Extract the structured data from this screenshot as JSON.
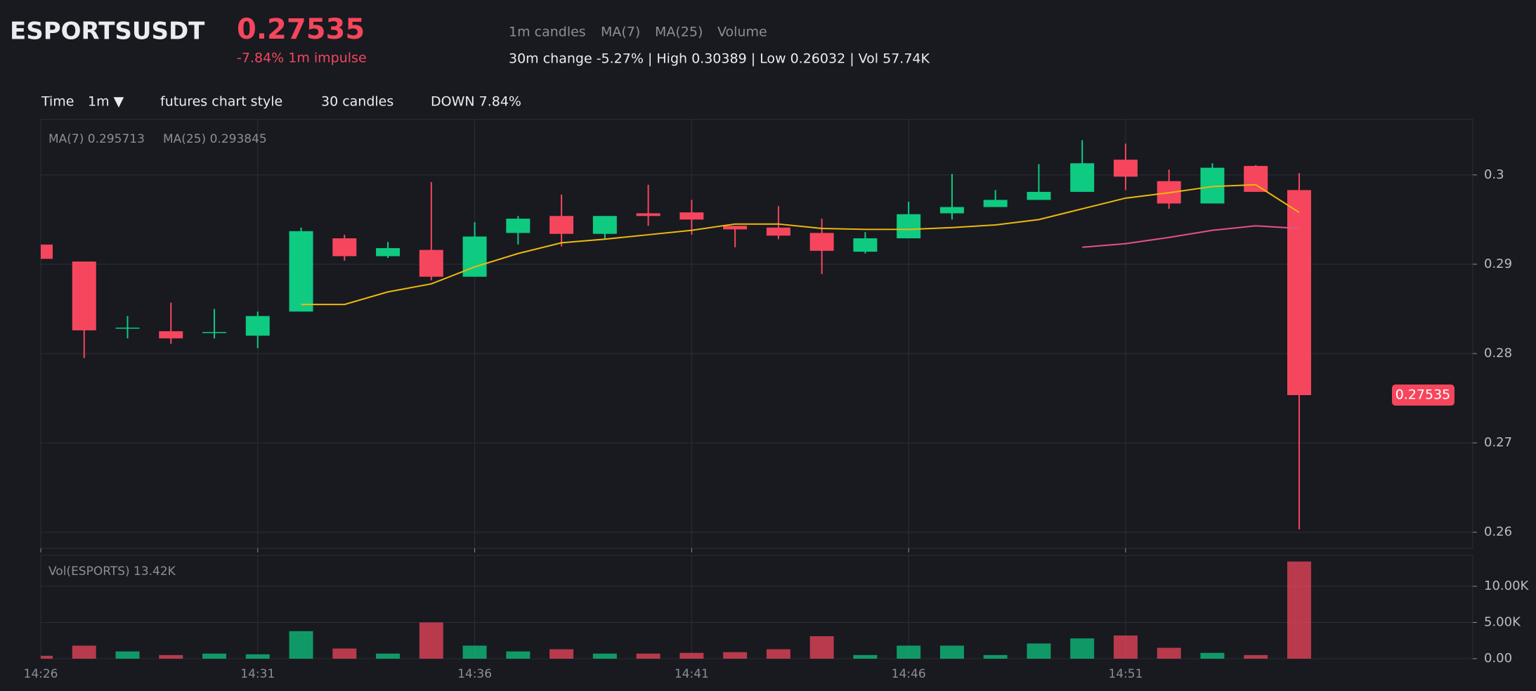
{
  "header": {
    "symbol": "ESPORTSUSDT",
    "price": "0.27535",
    "impulse": "-7.84% 1m impulse",
    "legend": [
      "1m candles",
      "MA(7)",
      "MA(25)",
      "Volume"
    ],
    "stats": "30m change -5.27% | High 0.30389 | Low 0.26032 | Vol 57.74K"
  },
  "toolbar": {
    "time_label": "Time",
    "interval": "1m ▼",
    "style": "futures chart style",
    "count": "30 candles",
    "direction": "DOWN 7.84%"
  },
  "chart_data": {
    "type": "candlestick",
    "x": [
      "14:26",
      "14:27",
      "14:28",
      "14:29",
      "14:30",
      "14:31",
      "14:32",
      "14:33",
      "14:34",
      "14:35",
      "14:36",
      "14:37",
      "14:38",
      "14:39",
      "14:40",
      "14:41",
      "14:42",
      "14:43",
      "14:44",
      "14:45",
      "14:46",
      "14:47",
      "14:48",
      "14:49",
      "14:50",
      "14:51",
      "14:52",
      "14:53",
      "14:54",
      "14:55"
    ],
    "xlim": [
      "14:26",
      "14:59"
    ],
    "xticks": [
      "14:26",
      "14:31",
      "14:36",
      "14:41",
      "14:46",
      "14:51"
    ],
    "ylim": [
      0.2582,
      0.3062
    ],
    "yticks": [
      0.26,
      0.27,
      0.28,
      0.29,
      0.3
    ],
    "grid": true,
    "up_color": "#0ecb81",
    "down_color": "#f6465d",
    "open": [
      0.2922,
      0.2903,
      0.2828,
      0.2825,
      0.2823,
      0.282,
      0.2847,
      0.2929,
      0.2909,
      0.2916,
      0.2886,
      0.2935,
      0.2954,
      0.2934,
      0.2957,
      0.2958,
      0.2943,
      0.2941,
      0.2935,
      0.2914,
      0.2929,
      0.2957,
      0.2964,
      0.2972,
      0.2981,
      0.3017,
      0.2993,
      0.2968,
      0.301,
      0.2983
    ],
    "high": [
      0.2922,
      0.2903,
      0.2842,
      0.2857,
      0.285,
      0.2847,
      0.2941,
      0.2933,
      0.2925,
      0.2992,
      0.2947,
      0.2954,
      0.2978,
      0.2954,
      0.2989,
      0.2972,
      0.2943,
      0.2965,
      0.2951,
      0.2936,
      0.297,
      0.3001,
      0.2983,
      0.3012,
      0.30389,
      0.3035,
      0.3006,
      0.3013,
      0.3011,
      0.3002
    ],
    "low": [
      0.2906,
      0.2795,
      0.2817,
      0.2811,
      0.2817,
      0.2806,
      0.2847,
      0.2904,
      0.2907,
      0.2882,
      0.2886,
      0.2922,
      0.292,
      0.2928,
      0.2943,
      0.2933,
      0.2919,
      0.2928,
      0.2889,
      0.2912,
      0.2929,
      0.295,
      0.2964,
      0.2972,
      0.2981,
      0.2983,
      0.2962,
      0.2968,
      0.2981,
      0.26032
    ],
    "close": [
      0.2906,
      0.2826,
      0.2829,
      0.2817,
      0.2824,
      0.2842,
      0.2937,
      0.2909,
      0.2918,
      0.2886,
      0.2931,
      0.2951,
      0.2934,
      0.2954,
      0.2954,
      0.295,
      0.2939,
      0.2932,
      0.2915,
      0.2929,
      0.2956,
      0.2964,
      0.2972,
      0.2981,
      0.3013,
      0.2998,
      0.2968,
      0.3008,
      0.2981,
      0.27535
    ],
    "series": [
      {
        "name": "MA(7) 0.295713",
        "color": "#f0b90b",
        "values": [
          null,
          null,
          null,
          null,
          null,
          null,
          0.2855,
          0.2855,
          0.2869,
          0.2878,
          0.2897,
          0.2912,
          0.2924,
          0.2928,
          0.2933,
          0.2938,
          0.2945,
          0.2945,
          0.294,
          0.2939,
          0.2939,
          0.2941,
          0.2944,
          0.295,
          0.2962,
          0.2974,
          0.298,
          0.2987,
          0.2989,
          0.2958
        ]
      },
      {
        "name": "MA(25) 0.293845",
        "color": "#e84f8f",
        "values": [
          null,
          null,
          null,
          null,
          null,
          null,
          null,
          null,
          null,
          null,
          null,
          null,
          null,
          null,
          null,
          null,
          null,
          null,
          null,
          null,
          null,
          null,
          null,
          null,
          0.2919,
          0.2923,
          0.293,
          0.2938,
          0.2943,
          0.294
        ]
      }
    ],
    "volume": {
      "title": "Vol(ESPORTS) 13.42K",
      "values": [
        0.4,
        1.8,
        1.0,
        0.5,
        0.7,
        0.6,
        3.8,
        1.4,
        0.7,
        5.0,
        1.8,
        1.0,
        1.3,
        0.7,
        0.7,
        0.8,
        0.9,
        1.3,
        3.1,
        0.5,
        1.8,
        1.8,
        0.5,
        2.1,
        2.8,
        3.2,
        1.5,
        0.8,
        0.5,
        13.42
      ],
      "ylim": [
        0,
        14.27
      ],
      "yticks": [
        {
          "value": 0,
          "label": "0.00"
        },
        {
          "value": 5,
          "label": "5.00K"
        },
        {
          "value": 10,
          "label": "10.00K"
        }
      ]
    }
  }
}
